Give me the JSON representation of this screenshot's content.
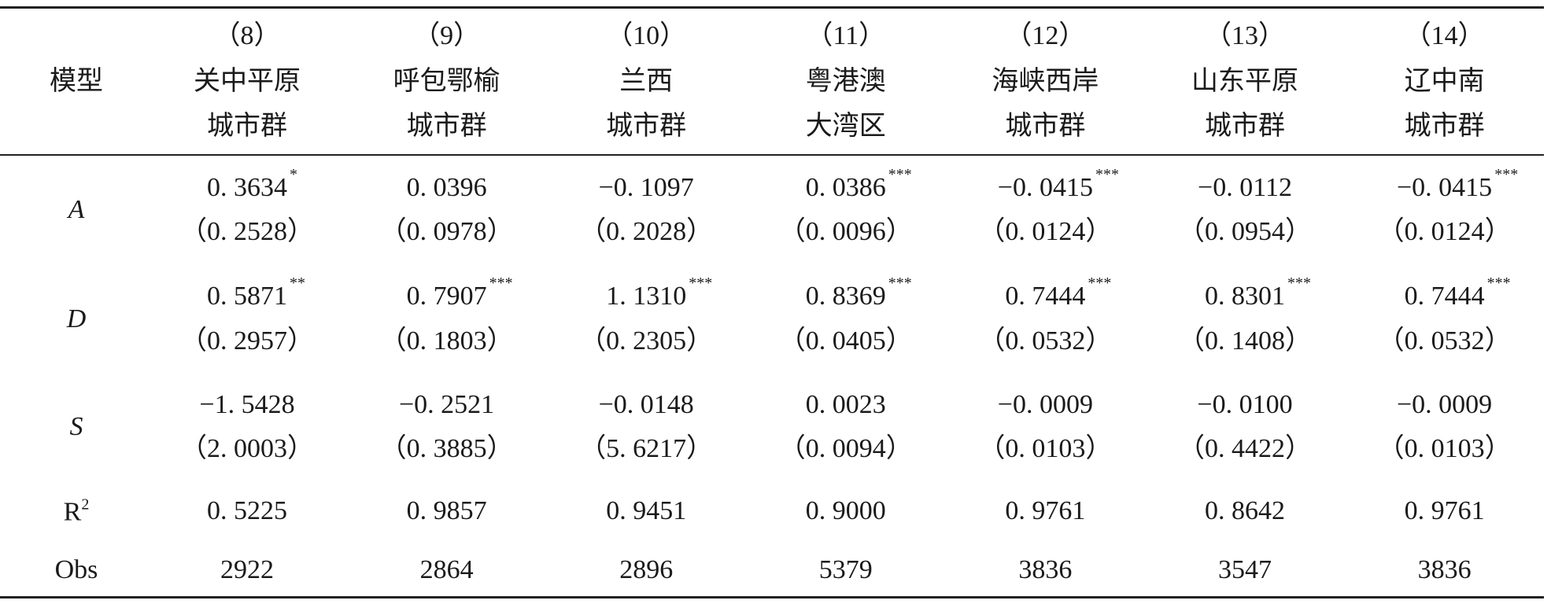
{
  "table": {
    "model_label": "模型",
    "columns": [
      {
        "number": "（8）",
        "name": [
          "关中平原",
          "城市群"
        ]
      },
      {
        "number": "（9）",
        "name": [
          "呼包鄂榆",
          "城市群"
        ]
      },
      {
        "number": "（10）",
        "name": [
          "兰西",
          "城市群"
        ]
      },
      {
        "number": "（11）",
        "name": [
          "粤港澳",
          "大湾区"
        ]
      },
      {
        "number": "（12）",
        "name": [
          "海峡西岸",
          "城市群"
        ]
      },
      {
        "number": "（13）",
        "name": [
          "山东平原",
          "城市群"
        ]
      },
      {
        "number": "（14）",
        "name": [
          "辽中南",
          "城市群"
        ]
      }
    ],
    "coef_rows": [
      {
        "label": "A",
        "coef": [
          "0. 3634",
          "0. 0396",
          "−0. 1097",
          "0. 0386",
          "−0. 0415",
          "−0. 0112",
          "−0. 0415"
        ],
        "stars": [
          "*",
          null,
          null,
          "***",
          "***",
          null,
          "***"
        ],
        "se": [
          "（0. 2528）",
          "（0. 0978）",
          "（0. 2028）",
          "（0. 0096）",
          "（0. 0124）",
          "（0. 0954）",
          "（0. 0124）"
        ]
      },
      {
        "label": "D",
        "coef": [
          "0. 5871",
          "0. 7907",
          "1. 1310",
          "0. 8369",
          "0. 7444",
          "0. 8301",
          "0. 7444"
        ],
        "stars": [
          "**",
          "***",
          "***",
          "***",
          "***",
          "***",
          "***"
        ],
        "se": [
          "（0. 2957）",
          "（0. 1803）",
          "（0. 2305）",
          "（0. 0405）",
          "（0. 0532）",
          "（0. 1408）",
          "（0. 0532）"
        ]
      },
      {
        "label": "S",
        "coef": [
          "−1. 5428",
          "−0. 2521",
          "−0. 0148",
          "0. 0023",
          "−0. 0009",
          "−0. 0100",
          "−0. 0009"
        ],
        "stars": [
          null,
          null,
          null,
          null,
          null,
          null,
          null
        ],
        "se": [
          "（2. 0003）",
          "（0. 3885）",
          "（5. 6217）",
          "（0. 0094）",
          "（0. 0103）",
          "（0. 4422）",
          "（0. 0103）"
        ]
      }
    ],
    "r2_row": {
      "label": "R",
      "label_sup": "2",
      "values": [
        "0. 5225",
        "0. 9857",
        "0. 9451",
        "0. 9000",
        "0. 9761",
        "0. 8642",
        "0. 9761"
      ]
    },
    "obs_row": {
      "label": "Obs",
      "values": [
        "2922",
        "2864",
        "2896",
        "5379",
        "3836",
        "3547",
        "3836"
      ]
    }
  }
}
